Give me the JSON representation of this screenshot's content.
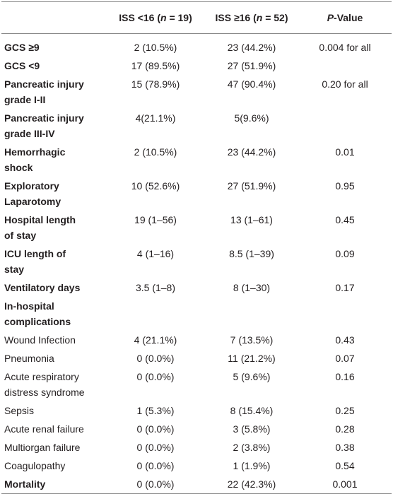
{
  "table": {
    "header": [
      [
        "ISS <16 (",
        "n",
        " = 19)"
      ],
      [
        "ISS ≥16 (",
        "n",
        " = 52)"
      ],
      [
        "P",
        "-Value"
      ]
    ],
    "rows": [
      {
        "label": [
          "GCS ≥9"
        ],
        "bold": true,
        "cells": [
          "2 (10.5%)",
          "23 (44.2%)",
          "0.004 for all"
        ]
      },
      {
        "label": [
          "GCS <9"
        ],
        "bold": true,
        "cells": [
          "17 (89.5%)",
          "27 (51.9%)"
        ]
      },
      {
        "label": [
          "Pancreatic injury",
          "grade I-II"
        ],
        "bold": true,
        "cells": [
          "15 (78.9%)",
          "47 (90.4%)",
          "0.20 for all"
        ]
      },
      {
        "label": [
          "Pancreatic injury",
          "grade III-IV"
        ],
        "bold": true,
        "cells": [
          "4(21.1%)",
          "5(9.6%)"
        ]
      },
      {
        "label": [
          "Hemorrhagic",
          "shock"
        ],
        "bold": true,
        "cells": [
          "2 (10.5%)",
          "23 (44.2%)",
          "0.01"
        ]
      },
      {
        "label": [
          "Exploratory",
          "Laparotomy"
        ],
        "bold": true,
        "cells": [
          "10 (52.6%)",
          "27 (51.9%)",
          "0.95"
        ]
      },
      {
        "label": [
          "Hospital length",
          "of stay"
        ],
        "bold": true,
        "cells": [
          "19 (1–56)",
          "13 (1–61)",
          "0.45"
        ]
      },
      {
        "label": [
          "ICU length of",
          "stay"
        ],
        "bold": true,
        "cells": [
          "4 (1–16)",
          "8.5 (1–39)",
          "0.09"
        ]
      },
      {
        "label": [
          "Ventilatory days"
        ],
        "bold": true,
        "cells": [
          "3.5 (1–8)",
          "8 (1–30)",
          "0.17"
        ]
      },
      {
        "label": [
          "In-hospital complications"
        ],
        "bold": true,
        "cells": []
      },
      {
        "label": [
          "Wound Infection"
        ],
        "bold": false,
        "cells": [
          "4 (21.1%)",
          "7 (13.5%)",
          "0.43"
        ]
      },
      {
        "label": [
          "Pneumonia"
        ],
        "bold": false,
        "cells": [
          "0 (0.0%)",
          "11 (21.2%)",
          "0.07"
        ]
      },
      {
        "label": [
          "Acute respiratory",
          "distress syndrome"
        ],
        "bold": false,
        "cells": [
          "0 (0.0%)",
          "5 (9.6%)",
          "0.16"
        ]
      },
      {
        "label": [
          "Sepsis"
        ],
        "bold": false,
        "cells": [
          "1 (5.3%)",
          "8 (15.4%)",
          "0.25"
        ]
      },
      {
        "label": [
          "Acute renal failure"
        ],
        "bold": false,
        "cells": [
          "0 (0.0%)",
          "3 (5.8%)",
          "0.28"
        ]
      },
      {
        "label": [
          "Multiorgan failure"
        ],
        "bold": false,
        "cells": [
          "0 (0.0%)",
          "2 (3.8%)",
          "0.38"
        ]
      },
      {
        "label": [
          "Coagulopathy"
        ],
        "bold": false,
        "cells": [
          "0 (0.0%)",
          "1 (1.9%)",
          "0.54"
        ]
      },
      {
        "label": [
          "Mortality"
        ],
        "bold": true,
        "cells": [
          "0 (0.0%)",
          "22 (42.3%)",
          "0.001"
        ]
      }
    ]
  }
}
